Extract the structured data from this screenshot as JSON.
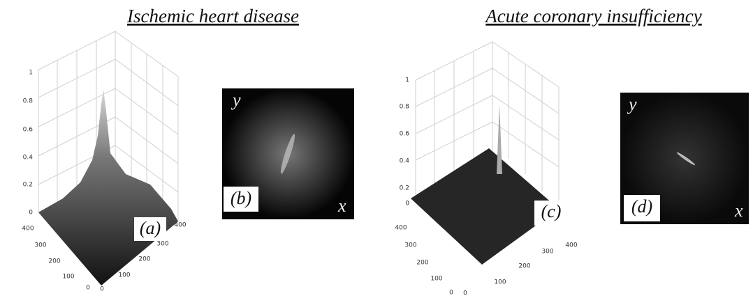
{
  "panels": [
    {
      "title": "Ischemic heart disease",
      "surface": {
        "label": "(a)",
        "z_ticks": [
          0,
          0.2,
          0.4,
          0.6,
          0.8,
          1
        ],
        "left_ticks": [
          400,
          300,
          200,
          100,
          0
        ],
        "right_ticks": [
          0,
          100,
          200,
          300,
          400
        ]
      },
      "image": {
        "label": "(b)",
        "y_axis": "y",
        "x_axis": "x"
      }
    },
    {
      "title": "Acute coronary insufficiency",
      "surface": {
        "label": "(c)",
        "z_ticks": [
          0,
          0.2,
          0.4,
          0.6,
          0.8,
          1
        ],
        "left_ticks": [
          400,
          300,
          200,
          100,
          0
        ],
        "right_ticks": [
          0,
          100,
          200,
          300,
          400
        ]
      },
      "image": {
        "label": "(d)",
        "y_axis": "y",
        "x_axis": "x"
      }
    }
  ]
}
